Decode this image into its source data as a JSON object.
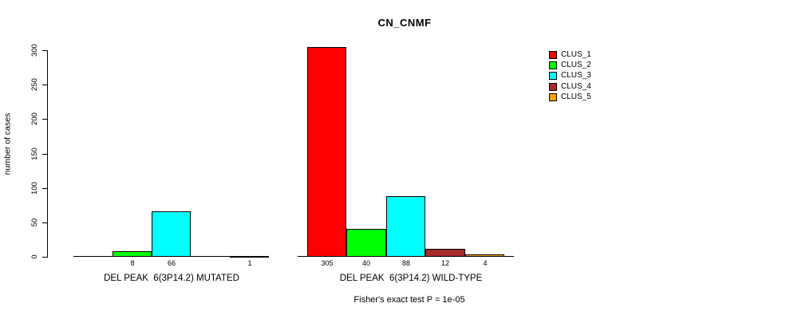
{
  "chart_data": {
    "type": "bar",
    "title": "CN_CNMF",
    "ylabel": "number of cases",
    "ylim": [
      0,
      300
    ],
    "yticks": [
      0,
      50,
      100,
      150,
      200,
      250,
      300
    ],
    "grid": false,
    "legend_position": "right",
    "legend": [
      {
        "label": "CLUS_1",
        "color": "#FF0000"
      },
      {
        "label": "CLUS_2",
        "color": "#00FF00"
      },
      {
        "label": "CLUS_3",
        "color": "#00FFFF"
      },
      {
        "label": "CLUS_4",
        "color": "#A52A2A"
      },
      {
        "label": "CLUS_5",
        "color": "#FFA500"
      }
    ],
    "groups": [
      {
        "label": "DEL PEAK  6(3P14.2) MUTATED",
        "values": [
          0,
          8,
          66,
          0,
          1
        ],
        "bar_labels": [
          "",
          "8",
          "66",
          "",
          "1"
        ]
      },
      {
        "label": "DEL PEAK  6(3P14.2) WILD-TYPE",
        "values": [
          305,
          40,
          88,
          12,
          4
        ],
        "bar_labels": [
          "305",
          "40",
          "88",
          "12",
          "4"
        ]
      }
    ],
    "footnote": "Fisher's exact test P = 1e-05"
  }
}
